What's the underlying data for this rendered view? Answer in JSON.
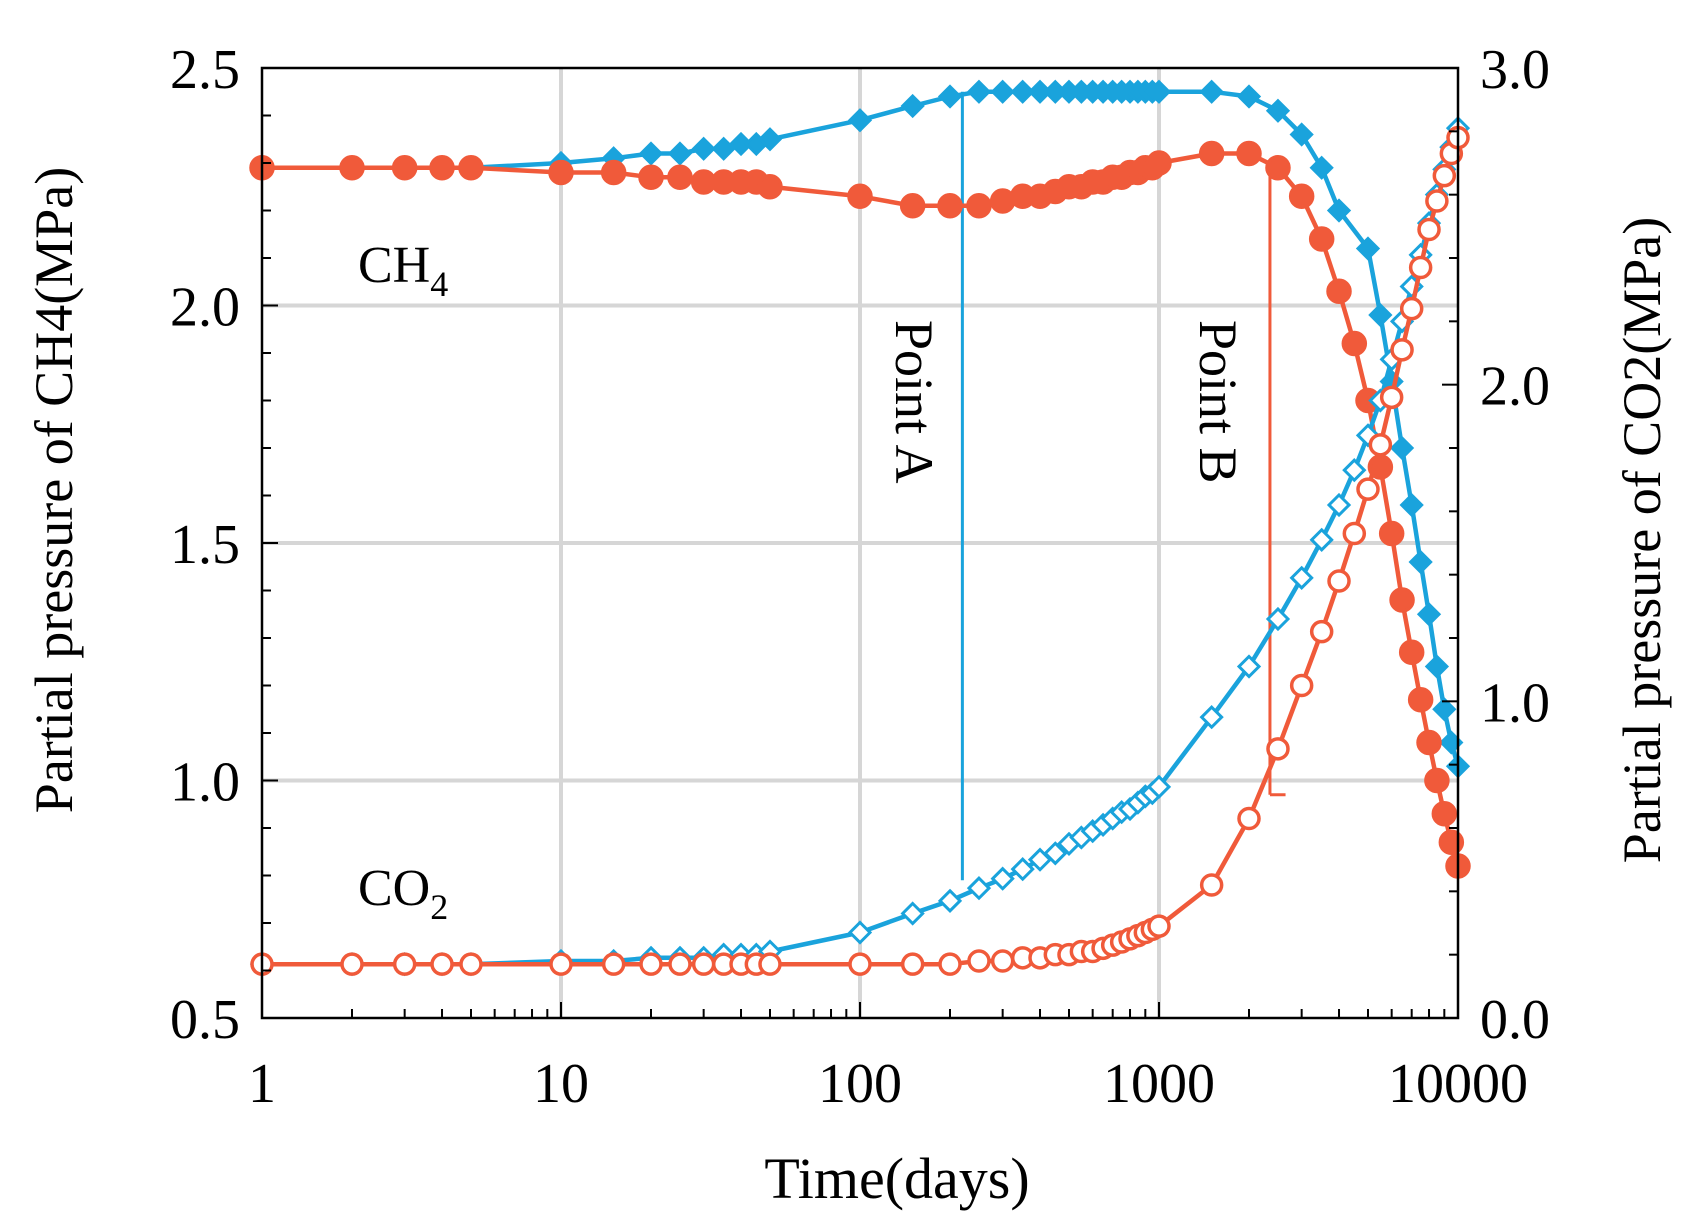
{
  "colors": {
    "blue": "#1aa3dc",
    "red": "#f05a3a",
    "grid": "#d6d6d6",
    "axis": "#000000"
  },
  "chart_data": {
    "type": "line",
    "title": "",
    "xlabel": "Time(days)",
    "ylabel_left": "Partial pressure of CH4(MPa)",
    "ylabel_right": "Partial pressure of CO2(MPa)",
    "xscale": "log",
    "xlim": [
      1,
      10000
    ],
    "ylim_left": [
      0.5,
      2.5
    ],
    "ylim_right": [
      0.0,
      3.0
    ],
    "x_ticks": [
      "1",
      "10",
      "100",
      "1000",
      "10000"
    ],
    "y_left_ticks": [
      "0.5",
      "1.0",
      "1.5",
      "2.0",
      "2.5"
    ],
    "y_right_ticks": [
      "0.0",
      "1.0",
      "2.0",
      "3.0"
    ],
    "grid": true,
    "annotations": {
      "ch4": {
        "base": "CH",
        "sub": "4"
      },
      "co2": {
        "base": "CO",
        "sub": "2"
      },
      "point_a": {
        "label": "Point A",
        "x": 220,
        "y_top": 2.45,
        "y_bottom": 0.79,
        "axis": "left"
      },
      "point_b": {
        "label": "Point B",
        "x": 2350,
        "y_top": 2.28,
        "y_bottom": 0.97,
        "axis": "left"
      }
    },
    "series": [
      {
        "name": "CH4 - Point A",
        "axis": "left",
        "color": "blue",
        "marker": "diamond",
        "filled": true,
        "x": [
          1,
          2,
          3,
          4,
          5,
          10,
          15,
          20,
          25,
          30,
          35,
          40,
          45,
          50,
          100,
          150,
          200,
          250,
          300,
          350,
          400,
          450,
          500,
          550,
          600,
          650,
          700,
          750,
          800,
          850,
          900,
          950,
          1000,
          1500,
          2000,
          2500,
          3000,
          3500,
          4000,
          5000,
          5500,
          6000,
          6500,
          7000,
          7500,
          8000,
          8500,
          9000,
          9500,
          10000
        ],
        "y": [
          2.29,
          2.29,
          2.29,
          2.29,
          2.29,
          2.3,
          2.31,
          2.32,
          2.32,
          2.33,
          2.33,
          2.34,
          2.34,
          2.35,
          2.39,
          2.42,
          2.44,
          2.45,
          2.45,
          2.45,
          2.45,
          2.45,
          2.45,
          2.45,
          2.45,
          2.45,
          2.45,
          2.45,
          2.45,
          2.45,
          2.45,
          2.45,
          2.45,
          2.45,
          2.44,
          2.41,
          2.36,
          2.29,
          2.2,
          2.12,
          1.98,
          1.84,
          1.7,
          1.58,
          1.46,
          1.35,
          1.24,
          1.15,
          1.08,
          1.03
        ]
      },
      {
        "name": "CH4 - Point B",
        "axis": "left",
        "color": "red",
        "marker": "circle",
        "filled": true,
        "x": [
          1,
          2,
          3,
          4,
          5,
          10,
          15,
          20,
          25,
          30,
          35,
          40,
          45,
          50,
          100,
          150,
          200,
          250,
          300,
          350,
          400,
          450,
          500,
          550,
          600,
          650,
          700,
          750,
          800,
          850,
          900,
          950,
          1000,
          1500,
          2000,
          2500,
          3000,
          3500,
          4000,
          4500,
          5000,
          5500,
          6000,
          6500,
          7000,
          7500,
          8000,
          8500,
          9000,
          9500,
          10000
        ],
        "y": [
          2.29,
          2.29,
          2.29,
          2.29,
          2.29,
          2.28,
          2.28,
          2.27,
          2.27,
          2.26,
          2.26,
          2.26,
          2.26,
          2.25,
          2.23,
          2.21,
          2.21,
          2.21,
          2.22,
          2.23,
          2.23,
          2.24,
          2.25,
          2.25,
          2.26,
          2.26,
          2.27,
          2.27,
          2.28,
          2.28,
          2.29,
          2.29,
          2.3,
          2.32,
          2.32,
          2.29,
          2.23,
          2.14,
          2.03,
          1.92,
          1.8,
          1.66,
          1.52,
          1.38,
          1.27,
          1.17,
          1.08,
          1.0,
          0.93,
          0.87,
          0.82
        ]
      },
      {
        "name": "CO2 - Point A",
        "axis": "right",
        "color": "blue",
        "marker": "diamond",
        "filled": false,
        "x": [
          1,
          2,
          3,
          4,
          5,
          10,
          15,
          20,
          25,
          30,
          35,
          40,
          45,
          50,
          100,
          150,
          200,
          250,
          300,
          350,
          400,
          450,
          500,
          550,
          600,
          650,
          700,
          750,
          800,
          850,
          900,
          950,
          1000,
          1500,
          2000,
          2500,
          3000,
          3500,
          4000,
          4500,
          5000,
          5500,
          6000,
          6500,
          7000,
          7500,
          8000,
          8500,
          9000,
          9500,
          10000
        ],
        "y": [
          0.17,
          0.17,
          0.17,
          0.17,
          0.17,
          0.18,
          0.18,
          0.19,
          0.19,
          0.19,
          0.2,
          0.2,
          0.2,
          0.21,
          0.27,
          0.33,
          0.37,
          0.41,
          0.44,
          0.47,
          0.5,
          0.52,
          0.55,
          0.57,
          0.59,
          0.61,
          0.63,
          0.65,
          0.66,
          0.68,
          0.7,
          0.71,
          0.73,
          0.95,
          1.11,
          1.26,
          1.39,
          1.51,
          1.62,
          1.73,
          1.84,
          1.95,
          2.08,
          2.2,
          2.31,
          2.41,
          2.51,
          2.6,
          2.68,
          2.75,
          2.81
        ]
      },
      {
        "name": "CO2 - Point B",
        "axis": "right",
        "color": "red",
        "marker": "circle",
        "filled": false,
        "x": [
          1,
          2,
          3,
          4,
          5,
          10,
          15,
          20,
          25,
          30,
          35,
          40,
          45,
          50,
          100,
          150,
          200,
          250,
          300,
          350,
          400,
          450,
          500,
          550,
          600,
          650,
          700,
          750,
          800,
          850,
          900,
          950,
          1000,
          1500,
          2000,
          2500,
          3000,
          3500,
          4000,
          4500,
          5000,
          5500,
          6000,
          6500,
          7000,
          7500,
          8000,
          8500,
          9000,
          9500,
          10000
        ],
        "y": [
          0.17,
          0.17,
          0.17,
          0.17,
          0.17,
          0.17,
          0.17,
          0.17,
          0.17,
          0.17,
          0.17,
          0.17,
          0.17,
          0.17,
          0.17,
          0.17,
          0.17,
          0.18,
          0.18,
          0.19,
          0.19,
          0.2,
          0.2,
          0.21,
          0.21,
          0.22,
          0.23,
          0.24,
          0.25,
          0.26,
          0.27,
          0.28,
          0.29,
          0.42,
          0.63,
          0.85,
          1.05,
          1.22,
          1.38,
          1.53,
          1.67,
          1.81,
          1.96,
          2.11,
          2.24,
          2.37,
          2.49,
          2.58,
          2.66,
          2.73,
          2.78
        ]
      }
    ]
  }
}
